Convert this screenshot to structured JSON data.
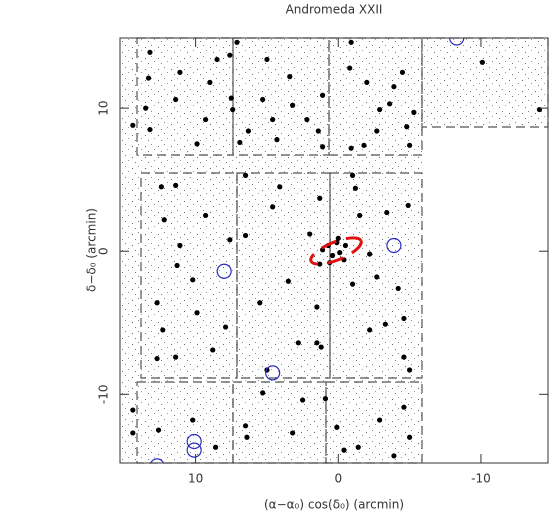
{
  "chart_data": {
    "type": "scatter",
    "title": "Andromeda XXII",
    "x_label": "(α−α₀) cos(δ₀) (arcmin)",
    "y_label": "δ−δ₀ (arcmin)",
    "xlim": [
      15.3,
      -14.7
    ],
    "ylim": [
      -14.8,
      14.9
    ],
    "xticks": [
      10,
      0,
      -10
    ],
    "yticks": [
      -10,
      0,
      10
    ],
    "series": [
      {
        "color": "#000000",
        "marker": "dot",
        "x": [
          13.2,
          11.1,
          13.3,
          11.4,
          13.5,
          14.4,
          13.2,
          9.0,
          8.5,
          9.3,
          7.5,
          7.4,
          7.6,
          9.9,
          6.3,
          6.9,
          5.3,
          4.6,
          3.4,
          3.2,
          2.2,
          1.4,
          1.1,
          1.1,
          4.3,
          5.0,
          7.1,
          -0.9,
          -0.8,
          -0.9,
          -1.8,
          -2.7,
          -2.9,
          -3.6,
          -4.5,
          -4.8,
          -5.0,
          -5.3,
          -3.9,
          -2.0,
          -10.1,
          -14.1,
          12.4,
          11.4,
          9.3,
          11.1,
          11.3,
          12.7,
          9.9,
          12.3,
          12.7,
          11.4,
          7.9,
          8.8,
          10.2,
          12.2,
          7.6,
          6.5,
          4.1,
          6.5,
          3.5,
          1.5,
          1.2,
          1.5,
          2.0,
          5.5,
          2.8,
          5.0,
          4.6,
          1.3,
          1.1,
          0.7,
          0.4,
          0.1,
          -0.1,
          -0.5,
          0.6,
          -0.4,
          0.0,
          1.3,
          -1.2,
          -1.5,
          -2.2,
          -2.7,
          -4.2,
          -4.6,
          -5.0,
          -4.6,
          -3.3,
          -2.2,
          -1.0,
          -1.0,
          -3.4,
          -4.9,
          14.4,
          14.4,
          12.6,
          10.2,
          8.6,
          6.5,
          6.4,
          5.3,
          2.5,
          3.2,
          0.9,
          0.1,
          -0.4,
          -1.4,
          -5.0,
          -4.6,
          -2.9,
          -3.9
        ],
        "y": [
          13.9,
          12.5,
          12.1,
          10.6,
          10.0,
          8.8,
          8.5,
          11.8,
          13.4,
          9.2,
          10.7,
          9.9,
          13.7,
          7.5,
          8.4,
          7.6,
          10.6,
          9.2,
          12.2,
          10.2,
          9.2,
          8.4,
          10.9,
          7.3,
          7.8,
          13.4,
          14.6,
          14.6,
          12.8,
          7.2,
          7.4,
          8.4,
          9.9,
          10.3,
          12.5,
          8.7,
          7.4,
          9.7,
          11.5,
          11.8,
          13.2,
          9.9,
          4.5,
          4.6,
          2.5,
          0.4,
          -1.0,
          -3.6,
          -4.3,
          -5.5,
          -7.5,
          -7.4,
          -5.3,
          -6.9,
          -2.0,
          2.2,
          0.8,
          5.3,
          4.5,
          1.1,
          -2.1,
          -3.9,
          -6.7,
          -6.4,
          1.2,
          -3.6,
          -6.4,
          -8.3,
          3.1,
          3.7,
          0.1,
          0.4,
          -0.3,
          0.6,
          -0.1,
          0.4,
          -0.8,
          -0.6,
          0.9,
          -0.9,
          4.4,
          2.5,
          -0.2,
          -1.8,
          -2.6,
          -4.7,
          -8.3,
          -7.4,
          -5.1,
          -5.5,
          -2.3,
          5.3,
          2.7,
          3.2,
          -11.1,
          -12.7,
          -12.5,
          -11.8,
          -13.7,
          -12.2,
          -13.0,
          -9.9,
          -10.4,
          -12.7,
          -10.3,
          -12.3,
          -13.9,
          -13.7,
          -13.0,
          -10.9,
          -11.8,
          -14.3
        ]
      },
      {
        "color": "#2b2bc8",
        "marker": "circle",
        "x": [
          8.0,
          -3.9,
          4.6,
          10.1,
          10.1,
          -8.3,
          12.7
        ],
        "y": [
          -1.4,
          0.4,
          -8.5,
          -13.3,
          -13.9,
          14.9,
          -15.0
        ]
      }
    ]
  }
}
